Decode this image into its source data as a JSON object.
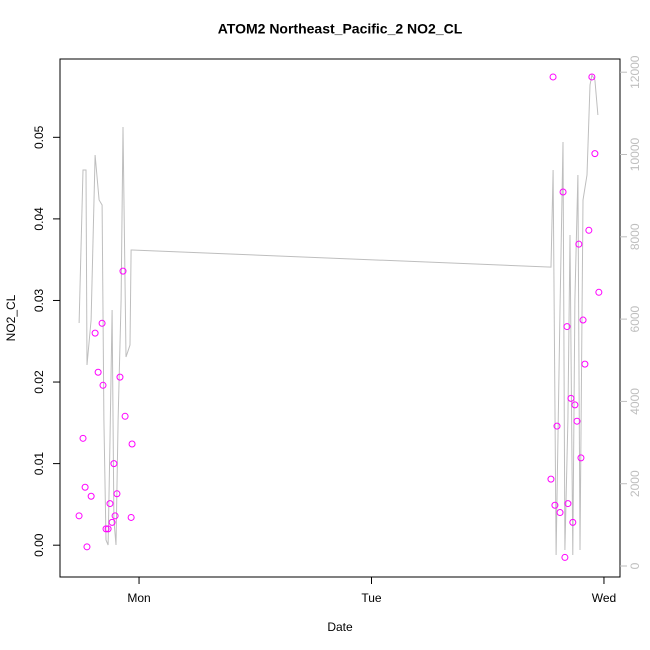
{
  "chart_data": {
    "type": "scatter",
    "title": "ATOM2 Northeast_Pacific_2 NO2_CL",
    "xlabel": "Date",
    "ylabel": "NO2_CL",
    "xlim": [
      -0.34,
      2.069
    ],
    "xticks": [
      {
        "value": 0,
        "label": "Mon"
      },
      {
        "value": 1,
        "label": "Tue"
      },
      {
        "value": 2,
        "label": "Wed"
      }
    ],
    "ylim": [
      -0.0039,
      0.0596
    ],
    "yticks": [
      {
        "value": 0,
        "label": "0.00"
      },
      0.01,
      0.02,
      0.03,
      0.04,
      0.05
    ],
    "y2lim": [
      -267,
      12321
    ],
    "y2ticks": [
      0,
      2000,
      4000,
      6000,
      8000,
      10000,
      12000
    ],
    "y2color": "#bebebe",
    "series": [
      {
        "color": "#ff00ff",
        "style": "points",
        "x": [
          -0.258,
          -0.241,
          -0.232,
          -0.224,
          -0.206,
          -0.189,
          -0.176,
          -0.159,
          -0.155,
          -0.142,
          -0.133,
          -0.125,
          -0.116,
          -0.108,
          -0.103,
          -0.095,
          -0.082,
          -0.069,
          -0.06,
          -0.034,
          -0.03,
          1.772,
          1.781,
          1.789,
          1.798,
          1.811,
          1.824,
          1.832,
          1.841,
          1.845,
          1.858,
          1.866,
          1.875,
          1.884,
          1.892,
          1.901,
          1.91,
          1.918,
          1.935,
          1.948,
          1.961,
          1.978
        ],
        "values": [
          0.0036,
          0.0131,
          0.0071,
          -0.0002,
          0.006,
          0.026,
          0.0212,
          0.0272,
          0.0196,
          0.002,
          0.002,
          0.0051,
          0.0028,
          0.01,
          0.0036,
          0.0063,
          0.0206,
          0.0336,
          0.0158,
          0.0034,
          0.0124,
          0.0081,
          0.0574,
          0.0049,
          0.0146,
          0.004,
          0.0433,
          -0.0015,
          0.0268,
          0.0051,
          0.018,
          0.0028,
          0.0172,
          0.0152,
          0.0369,
          0.0107,
          0.0276,
          0.0222,
          0.0386,
          0.0574,
          0.048,
          0.031
        ]
      },
      {
        "color": "#bebebe",
        "style": "line",
        "axis": "y2",
        "x": [
          -0.258,
          -0.241,
          -0.228,
          -0.224,
          -0.206,
          -0.189,
          -0.172,
          -0.159,
          -0.151,
          -0.142,
          -0.133,
          -0.125,
          -0.116,
          -0.108,
          -0.099,
          -0.09,
          -0.077,
          -0.069,
          -0.056,
          -0.039,
          -0.034,
          -0.03,
          1.772,
          1.781,
          1.794,
          1.811,
          1.824,
          1.832,
          1.845,
          1.854,
          1.866,
          1.875,
          1.888,
          1.897,
          1.91,
          1.927,
          1.94,
          1.948,
          1.961,
          1.974
        ],
        "values": [
          5905,
          9623,
          9623,
          4884,
          5978,
          9987,
          8894,
          8773,
          3548,
          632,
          510,
          3062,
          6221,
          1118,
          510,
          3548,
          6464,
          10668,
          5079,
          5371,
          7679,
          7679,
          7265,
          9623,
          267,
          6221,
          10303,
          389,
          3548,
          8043,
          267,
          6464,
          9502,
          389,
          8894,
          9502,
          11689,
          11932,
          11811,
          10960
        ]
      }
    ]
  }
}
